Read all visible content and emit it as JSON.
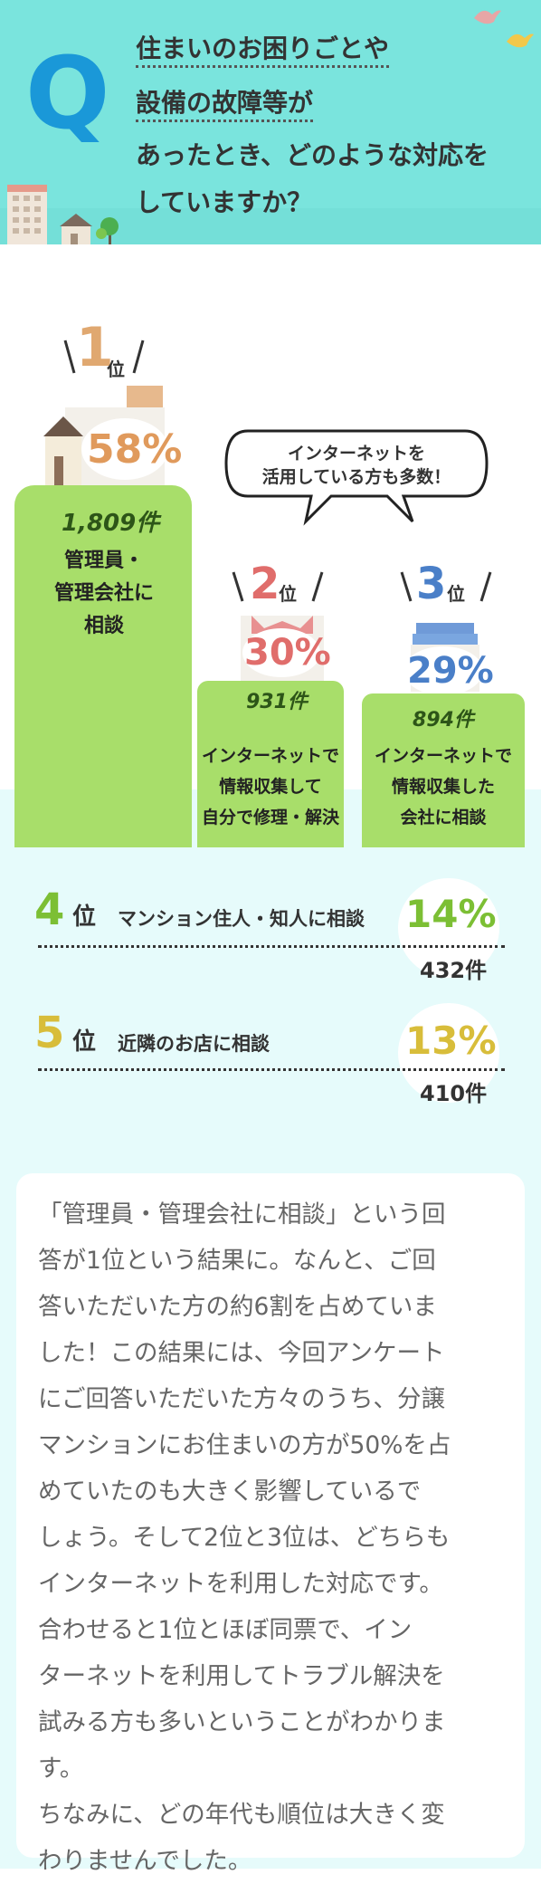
{
  "header": {
    "q_letter": "Q",
    "question_line1": "住まいのお困りごとや",
    "question_line2": "設備の故障等が",
    "question_line3": "あったとき、どのような対応を",
    "question_line4": "していますか？"
  },
  "top3": {
    "rank1": {
      "rank_num": "1",
      "rank_suffix": "位",
      "percent": "58%",
      "count": "1,809件",
      "label_line1": "管理員・",
      "label_line2": "管理会社に",
      "label_line3": "相談"
    },
    "rank2": {
      "rank_num": "2",
      "rank_suffix": "位",
      "percent": "30%",
      "count": "931件",
      "label_line1": "インターネットで",
      "label_line2": "情報収集して",
      "label_line3": "自分で修理・解決"
    },
    "rank3": {
      "rank_num": "3",
      "rank_suffix": "位",
      "percent": "29%",
      "count": "894件",
      "label_line1": "インターネットで",
      "label_line2": "情報収集した",
      "label_line3": "会社に相談"
    },
    "bubble_line1": "インターネットを",
    "bubble_line2": "活用している方も多数！"
  },
  "others": [
    {
      "rank_num": "4",
      "rank_suffix": "位",
      "label": "マンション住人・知人に相談",
      "percent": "14%",
      "count": "432件",
      "num_color": "#7cbf34",
      "pct_color": "#7cbf34"
    },
    {
      "rank_num": "5",
      "rank_suffix": "位",
      "label": "近隣のお店に相談",
      "percent": "13%",
      "count": "410件",
      "num_color": "#d8bd3a",
      "pct_color": "#d8bd3a"
    }
  ],
  "comment": "「管理員・管理会社に相談」という回\n答が1位という結果に。なんと、ご回\n答いただいた方の約6割を占めていま\nした！この結果には、今回アンケート\nにご回答いただいた方々のうち、分譲\nマンションにお住まいの方が50%を占\nめていたのも大きく影響しているで\nしょう。そして2位と3位は、どちらも\nインターネットを利用した対応です。\n合わせると1位とほぼ同票で、イン\nターネットを利用してトラブル解決を\n試みる方も多いということがわかりま\nす。\nちなみに、どの年代も順位は大きく変\nわりませんでした。",
  "colors": {
    "header_bg": "#78e3dc",
    "q_blue": "#1a98d8",
    "mountain_green": "#a8de6a",
    "rank1": "#e09a5c",
    "rank2": "#e0706e",
    "rank3": "#4a7fc8",
    "lower_bg": "#e6fbfb"
  },
  "icons": [
    "bird-pink-icon",
    "bird-yellow-icon",
    "building-icon",
    "house-icon",
    "tree-icon",
    "rank1-house-icon",
    "rank2-cat-icon",
    "rank3-cake-icon"
  ]
}
